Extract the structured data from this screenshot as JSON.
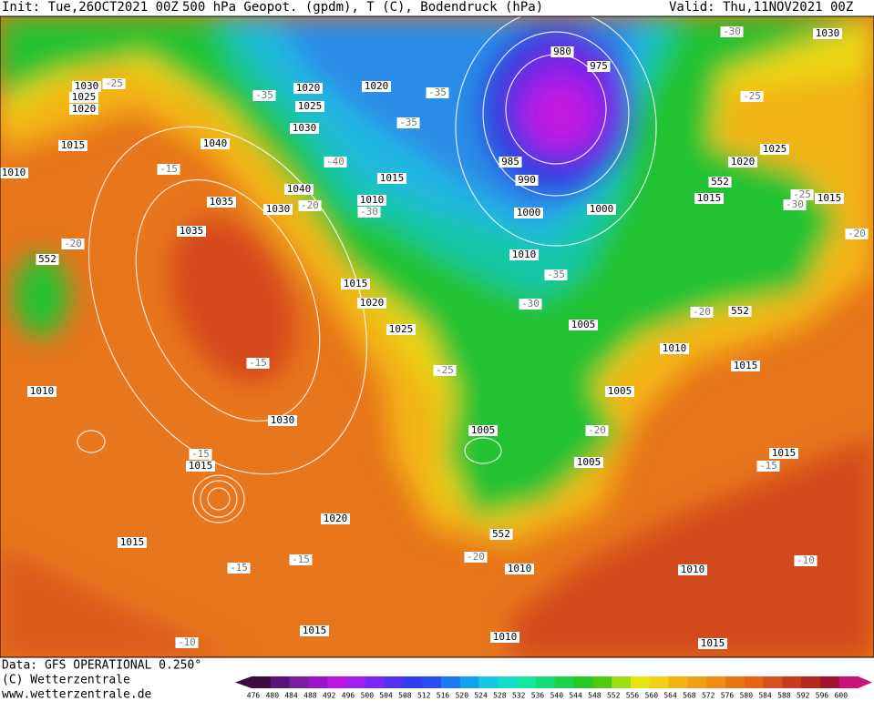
{
  "header": {
    "init": "Init: Tue,26OCT2021 00Z",
    "title": "500 hPa Geopot. (gpdm), T (C), Bodendruck (hPa)",
    "valid": "Valid: Thu,11NOV2021 00Z"
  },
  "footer": {
    "source": "Data: GFS OPERATIONAL 0.250°",
    "copyright": "(C) Wetterzentrale",
    "url": "www.wetterzentrale.de"
  },
  "colorbar": {
    "ticks": [
      "476",
      "480",
      "484",
      "488",
      "492",
      "496",
      "500",
      "504",
      "508",
      "512",
      "516",
      "520",
      "524",
      "528",
      "532",
      "536",
      "540",
      "544",
      "548",
      "552",
      "556",
      "560",
      "564",
      "568",
      "572",
      "576",
      "580",
      "584",
      "588",
      "592",
      "596",
      "600"
    ]
  },
  "map": {
    "labels": [
      "1030",
      "-25",
      "1025",
      "1020",
      "1015",
      "1010",
      "-15",
      "1040",
      "1035",
      "1035",
      "-20",
      "552",
      "1030",
      "1040",
      "-20",
      "-35",
      "1020",
      "1025",
      "1030",
      "1020",
      "-35",
      "-35",
      "-40",
      "1015",
      "1010",
      "-30",
      "980",
      "975",
      "985",
      "990",
      "1000",
      "1000",
      "1010",
      "-35",
      "-30",
      "1005",
      "1015",
      "1020",
      "1025",
      "-15",
      "-25",
      "1010",
      "1030",
      "1005",
      "-20",
      "1005",
      "1005",
      "-15",
      "1015",
      "1020",
      "1015",
      "-15",
      "-15",
      "552",
      "-20",
      "1010",
      "1015",
      "-10",
      "1010",
      "1010",
      "1015",
      "-10",
      "1015",
      "-15",
      "1015",
      "1010",
      "-20",
      "552",
      "-20",
      "-25",
      "1015",
      "-30",
      "1015",
      "552",
      "1020",
      "1025",
      "-25",
      "-30",
      "1030"
    ]
  }
}
